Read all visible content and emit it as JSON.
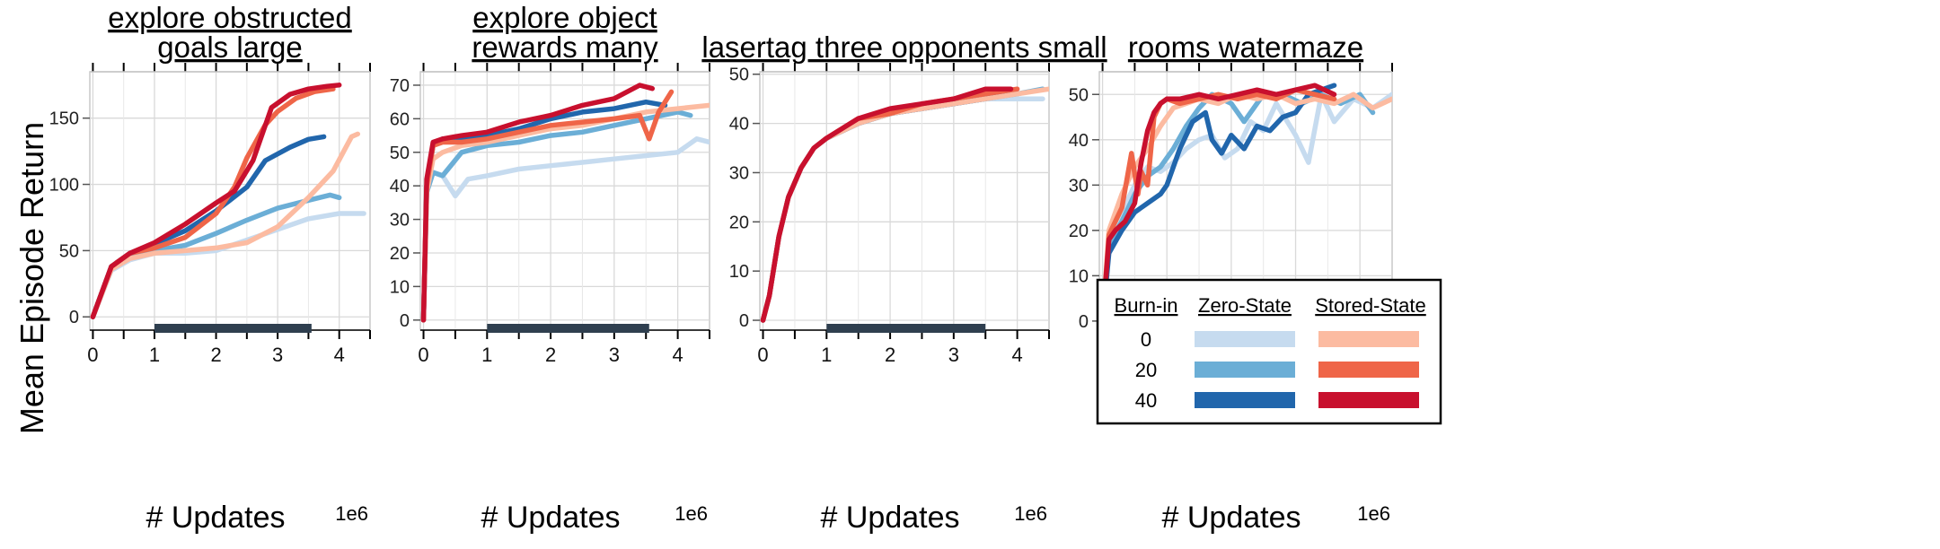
{
  "figure": {
    "ylabel": "Mean Episode Return",
    "xlabel": "# Updates",
    "x_scale_label": "1e6"
  },
  "legend": {
    "headers": [
      "Burn-in",
      "Zero-State",
      "Stored-State"
    ],
    "rows": [
      {
        "burn_in": "0",
        "zero_color": "#c6dbef",
        "stored_color": "#fcbba1"
      },
      {
        "burn_in": "20",
        "zero_color": "#6baed6",
        "stored_color": "#ef6548"
      },
      {
        "burn_in": "40",
        "zero_color": "#2166ac",
        "stored_color": "#c8102e"
      }
    ]
  },
  "chart_data": [
    {
      "type": "line",
      "title_lines": [
        "explore obstructed",
        "goals large"
      ],
      "xlim": [
        -0.05,
        4.5
      ],
      "ylim": [
        -10,
        185
      ],
      "xticks": [
        0,
        1,
        2,
        3,
        4
      ],
      "yticks": [
        0,
        50,
        100,
        150
      ],
      "highlight_x": [
        1.0,
        3.55
      ],
      "series": [
        {
          "key": "z0",
          "color": "#c6dbef",
          "x": [
            0,
            0.3,
            0.6,
            1.0,
            1.5,
            2.0,
            2.5,
            3.0,
            3.5,
            4.0,
            4.4
          ],
          "y": [
            0,
            35,
            43,
            48,
            48,
            50,
            58,
            66,
            74,
            78,
            78
          ]
        },
        {
          "key": "z20",
          "color": "#6baed6",
          "x": [
            0,
            0.3,
            0.6,
            1.0,
            1.5,
            2.0,
            2.5,
            3.0,
            3.5,
            3.85,
            4.0
          ],
          "y": [
            0,
            38,
            45,
            50,
            54,
            63,
            73,
            82,
            88,
            92,
            90
          ]
        },
        {
          "key": "z40",
          "color": "#2166ac",
          "x": [
            0,
            0.3,
            0.6,
            1.0,
            1.5,
            2.0,
            2.5,
            2.8,
            3.2,
            3.5,
            3.75
          ],
          "y": [
            0,
            38,
            48,
            55,
            65,
            80,
            98,
            118,
            128,
            134,
            136
          ]
        },
        {
          "key": "s0",
          "color": "#fcbba1",
          "x": [
            0,
            0.3,
            0.6,
            1.0,
            1.5,
            2.0,
            2.5,
            3.0,
            3.5,
            3.9,
            4.2,
            4.3
          ],
          "y": [
            0,
            36,
            44,
            48,
            50,
            52,
            56,
            68,
            90,
            110,
            136,
            138
          ]
        },
        {
          "key": "s20",
          "color": "#ef6548",
          "x": [
            0,
            0.3,
            0.6,
            1.0,
            1.5,
            2.0,
            2.3,
            2.5,
            2.8,
            3.0,
            3.3,
            3.6,
            3.9
          ],
          "y": [
            0,
            38,
            48,
            52,
            60,
            78,
            98,
            120,
            145,
            155,
            165,
            170,
            172
          ]
        },
        {
          "key": "s40",
          "color": "#c8102e",
          "x": [
            0,
            0.3,
            0.6,
            1.0,
            1.5,
            2.0,
            2.3,
            2.6,
            2.9,
            3.2,
            3.5,
            3.8,
            4.0
          ],
          "y": [
            0,
            38,
            48,
            56,
            70,
            86,
            95,
            118,
            158,
            168,
            172,
            174,
            175
          ]
        }
      ]
    },
    {
      "type": "line",
      "title_lines": [
        "explore object",
        "rewards many"
      ],
      "xlim": [
        -0.05,
        4.5
      ],
      "ylim": [
        -3,
        74
      ],
      "xticks": [
        0,
        1,
        2,
        3,
        4
      ],
      "yticks": [
        0,
        10,
        20,
        30,
        40,
        50,
        60,
        70
      ],
      "highlight_x": [
        1.0,
        3.55
      ],
      "series": [
        {
          "key": "z0",
          "color": "#c6dbef",
          "x": [
            0,
            0.05,
            0.15,
            0.3,
            0.5,
            0.7,
            1.0,
            1.5,
            2.0,
            2.5,
            3.0,
            3.5,
            4.0,
            4.3,
            4.5
          ],
          "y": [
            0,
            38,
            44,
            43,
            37,
            42,
            43,
            45,
            46,
            47,
            48,
            49,
            50,
            54,
            53
          ]
        },
        {
          "key": "z20",
          "color": "#6baed6",
          "x": [
            0,
            0.05,
            0.15,
            0.3,
            0.6,
            1.0,
            1.5,
            2.0,
            2.5,
            3.0,
            3.5,
            4.0,
            4.2
          ],
          "y": [
            0,
            38,
            44,
            43,
            50,
            52,
            53,
            55,
            56,
            58,
            60,
            62,
            61
          ]
        },
        {
          "key": "z40",
          "color": "#2166ac",
          "x": [
            0,
            0.05,
            0.15,
            0.3,
            0.6,
            1.0,
            1.5,
            2.0,
            2.5,
            3.0,
            3.5,
            3.8
          ],
          "y": [
            0,
            40,
            52,
            54,
            54,
            55,
            57,
            60,
            62,
            63,
            65,
            64
          ]
        },
        {
          "key": "s0",
          "color": "#fcbba1",
          "x": [
            0,
            0.05,
            0.15,
            0.3,
            0.6,
            1.0,
            1.5,
            2.0,
            2.5,
            3.0,
            3.5,
            4.0,
            4.5
          ],
          "y": [
            0,
            38,
            48,
            50,
            52,
            53,
            55,
            57,
            58,
            60,
            62,
            63,
            64
          ]
        },
        {
          "key": "s20",
          "color": "#ef6548",
          "x": [
            0,
            0.05,
            0.15,
            0.3,
            0.6,
            1.0,
            1.5,
            2.0,
            2.5,
            3.0,
            3.4,
            3.55,
            3.7,
            3.9
          ],
          "y": [
            0,
            40,
            52,
            53,
            53,
            54,
            56,
            58,
            59,
            60,
            61,
            54,
            62,
            68
          ]
        },
        {
          "key": "s40",
          "color": "#c8102e",
          "x": [
            0,
            0.05,
            0.15,
            0.3,
            0.6,
            1.0,
            1.5,
            2.0,
            2.5,
            3.0,
            3.4,
            3.6
          ],
          "y": [
            0,
            42,
            53,
            54,
            55,
            56,
            59,
            61,
            64,
            66,
            70,
            69
          ]
        }
      ]
    },
    {
      "type": "line",
      "title_lines": [
        "lasertag three opponents small"
      ],
      "xlim": [
        -0.05,
        4.5
      ],
      "ylim": [
        -2,
        50.5
      ],
      "xticks": [
        0,
        1,
        2,
        3,
        4
      ],
      "yticks": [
        0,
        10,
        20,
        30,
        40,
        50
      ],
      "highlight_x": [
        1.0,
        3.5
      ],
      "series": [
        {
          "key": "z0",
          "color": "#c6dbef",
          "x": [
            0,
            0.1,
            0.25,
            0.4,
            0.6,
            0.8,
            1.0,
            1.5,
            2.0,
            2.5,
            3.0,
            3.5,
            4.0,
            4.4
          ],
          "y": [
            0,
            5,
            17,
            25,
            31,
            35,
            37,
            40,
            42,
            43,
            44,
            45,
            45,
            45
          ]
        },
        {
          "key": "z20",
          "color": "#6baed6",
          "x": [
            0,
            0.1,
            0.25,
            0.4,
            0.6,
            0.8,
            1.0,
            1.5,
            2.0,
            2.5,
            3.0,
            3.5,
            4.0,
            4.4
          ],
          "y": [
            0,
            5,
            17,
            25,
            31,
            35,
            37,
            40,
            42,
            43,
            44,
            45,
            46,
            47
          ]
        },
        {
          "key": "z40",
          "color": "#2166ac",
          "x": [
            0,
            0.1,
            0.25,
            0.4,
            0.6,
            0.8,
            1.0,
            1.5,
            2.0,
            2.5,
            3.0,
            3.5,
            3.85
          ],
          "y": [
            0,
            5,
            17,
            25,
            31,
            35,
            37,
            40,
            42,
            43,
            44,
            45,
            46
          ]
        },
        {
          "key": "s0",
          "color": "#fcbba1",
          "x": [
            0,
            0.1,
            0.25,
            0.4,
            0.6,
            0.8,
            1.0,
            1.5,
            2.0,
            2.5,
            3.0,
            3.5,
            4.0,
            4.5
          ],
          "y": [
            0,
            5,
            17,
            25,
            31,
            35,
            37,
            40,
            42,
            43,
            44,
            45,
            46,
            47
          ]
        },
        {
          "key": "s20",
          "color": "#ef6548",
          "x": [
            0,
            0.1,
            0.25,
            0.4,
            0.6,
            0.8,
            1.0,
            1.5,
            2.0,
            2.5,
            3.0,
            3.5,
            4.0
          ],
          "y": [
            0,
            5,
            17,
            25,
            31,
            35,
            37,
            41,
            42,
            44,
            45,
            46,
            47
          ]
        },
        {
          "key": "s40",
          "color": "#c8102e",
          "x": [
            0,
            0.1,
            0.25,
            0.4,
            0.6,
            0.8,
            1.0,
            1.5,
            2.0,
            2.5,
            3.0,
            3.5,
            3.9
          ],
          "y": [
            0,
            5,
            17,
            25,
            31,
            35,
            37,
            41,
            43,
            44,
            45,
            47,
            47
          ]
        }
      ]
    },
    {
      "type": "line",
      "title_lines": [
        "rooms watermaze"
      ],
      "xlim": [
        -0.05,
        4.5
      ],
      "ylim": [
        -2,
        55
      ],
      "xticks": [
        0,
        1,
        2,
        3,
        4
      ],
      "yticks": [
        0,
        10,
        20,
        30,
        40,
        50
      ],
      "highlight_x": [
        1.0,
        3.55
      ],
      "series": [
        {
          "key": "z0",
          "color": "#c6dbef",
          "x": [
            0,
            0.1,
            0.3,
            0.5,
            0.7,
            0.9,
            1.1,
            1.3,
            1.5,
            1.7,
            1.9,
            2.1,
            2.3,
            2.5,
            2.7,
            3.0,
            3.2,
            3.4,
            3.6,
            3.9,
            4.2,
            4.5
          ],
          "y": [
            0,
            18,
            24,
            30,
            34,
            33,
            35,
            38,
            40,
            41,
            36,
            38,
            44,
            42,
            48,
            41,
            35,
            50,
            44,
            49,
            47,
            50
          ]
        },
        {
          "key": "z20",
          "color": "#6baed6",
          "x": [
            0,
            0.1,
            0.3,
            0.5,
            0.7,
            0.9,
            1.1,
            1.3,
            1.5,
            1.7,
            2.0,
            2.2,
            2.5,
            2.8,
            3.1,
            3.4,
            3.7,
            4.0,
            4.2
          ],
          "y": [
            0,
            17,
            22,
            28,
            32,
            34,
            38,
            43,
            47,
            50,
            48,
            44,
            50,
            50,
            48,
            50,
            48,
            50,
            46
          ]
        },
        {
          "key": "z40",
          "color": "#2166ac",
          "x": [
            0,
            0.1,
            0.3,
            0.5,
            0.7,
            0.9,
            1.0,
            1.2,
            1.4,
            1.6,
            1.7,
            1.85,
            2.0,
            2.2,
            2.4,
            2.6,
            2.8,
            3.0,
            3.2,
            3.4,
            3.6
          ],
          "y": [
            0,
            15,
            20,
            24,
            26,
            28,
            30,
            38,
            44,
            46,
            40,
            37,
            41,
            38,
            43,
            42,
            45,
            46,
            50,
            51,
            52
          ]
        },
        {
          "key": "s0",
          "color": "#fcbba1",
          "x": [
            0,
            0.1,
            0.3,
            0.5,
            0.7,
            0.9,
            1.1,
            1.3,
            1.5,
            1.8,
            2.1,
            2.4,
            2.7,
            3.0,
            3.3,
            3.6,
            3.9,
            4.2,
            4.5
          ],
          "y": [
            0,
            20,
            28,
            34,
            38,
            43,
            47,
            48,
            49,
            48,
            50,
            49,
            50,
            48,
            49,
            48,
            50,
            47,
            49
          ]
        },
        {
          "key": "s20",
          "color": "#ef6548",
          "x": [
            0,
            0.1,
            0.2,
            0.3,
            0.45,
            0.55,
            0.6,
            0.7,
            0.8,
            0.9,
            1.0,
            1.2,
            1.5,
            1.8,
            2.1,
            2.4,
            2.7,
            3.0,
            3.3,
            3.6
          ],
          "y": [
            0,
            19,
            22,
            25,
            37,
            28,
            33,
            30,
            45,
            48,
            49,
            48,
            49,
            50,
            49,
            50,
            49,
            51,
            50,
            49
          ]
        },
        {
          "key": "s40",
          "color": "#c8102e",
          "x": [
            0,
            0.1,
            0.2,
            0.35,
            0.5,
            0.6,
            0.7,
            0.8,
            0.9,
            1.0,
            1.2,
            1.5,
            1.8,
            2.1,
            2.4,
            2.7,
            3.0,
            3.3,
            3.6
          ],
          "y": [
            0,
            18,
            20,
            22,
            26,
            35,
            42,
            46,
            48,
            49,
            49,
            50,
            49,
            50,
            51,
            50,
            51,
            52,
            50
          ]
        }
      ]
    }
  ]
}
